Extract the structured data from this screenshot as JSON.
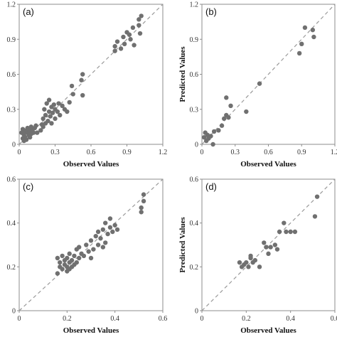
{
  "colors": {
    "points": "#707070",
    "diagonal": "#9a9a9a",
    "frame": "#8c8c8c"
  },
  "chart_data": [
    {
      "type": "scatter",
      "tag": "(a)",
      "xlabel": "Observed Values",
      "ylabel": "",
      "xlim": [
        0,
        1.2
      ],
      "ylim": [
        0,
        1.2
      ],
      "xticks": [
        "0",
        "0.3",
        "0.6",
        "0.9",
        "1.2"
      ],
      "yticks": [
        "0",
        "0.3",
        "0.6",
        "0.9",
        "1.2"
      ],
      "reference_line": "y = x",
      "x": [
        0.02,
        0.03,
        0.03,
        0.04,
        0.04,
        0.05,
        0.05,
        0.06,
        0.06,
        0.07,
        0.07,
        0.08,
        0.08,
        0.09,
        0.09,
        0.1,
        0.1,
        0.11,
        0.12,
        0.13,
        0.14,
        0.15,
        0.18,
        0.19,
        0.2,
        0.2,
        0.21,
        0.22,
        0.22,
        0.23,
        0.24,
        0.25,
        0.25,
        0.26,
        0.27,
        0.27,
        0.28,
        0.29,
        0.3,
        0.3,
        0.32,
        0.33,
        0.34,
        0.36,
        0.38,
        0.4,
        0.42,
        0.44,
        0.45,
        0.52,
        0.53,
        0.53,
        0.8,
        0.8,
        0.82,
        0.85,
        0.87,
        0.88,
        0.9,
        0.92,
        0.93,
        0.95,
        0.96,
        1.0,
        1.0,
        1.01,
        1.02
      ],
      "y": [
        0.1,
        0.05,
        0.13,
        0.08,
        0.03,
        0.11,
        0.06,
        0.12,
        0.04,
        0.1,
        0.14,
        0.08,
        0.13,
        0.06,
        0.11,
        0.09,
        0.15,
        0.12,
        0.1,
        0.14,
        0.16,
        0.1,
        0.12,
        0.17,
        0.15,
        0.22,
        0.3,
        0.18,
        0.25,
        0.35,
        0.2,
        0.28,
        0.38,
        0.24,
        0.32,
        0.18,
        0.27,
        0.34,
        0.3,
        0.22,
        0.28,
        0.35,
        0.25,
        0.33,
        0.3,
        0.28,
        0.36,
        0.5,
        0.43,
        0.55,
        0.6,
        0.42,
        0.8,
        0.84,
        0.88,
        0.82,
        0.92,
        0.86,
        0.96,
        0.94,
        0.9,
        1.0,
        0.85,
        1.07,
        1.02,
        0.95,
        1.1
      ]
    },
    {
      "type": "scatter",
      "tag": "(b)",
      "xlabel": "Observed Values",
      "ylabel": "Predicted Values",
      "xlim": [
        0,
        1.2
      ],
      "ylim": [
        0,
        1.2
      ],
      "xticks": [
        "0",
        "0.3",
        "0.6",
        "0.9",
        "1.2"
      ],
      "yticks": [
        "0",
        "0.3",
        "0.6",
        "0.9",
        "1.2"
      ],
      "reference_line": "y = x",
      "x": [
        0.02,
        0.03,
        0.04,
        0.05,
        0.06,
        0.08,
        0.1,
        0.11,
        0.15,
        0.18,
        0.2,
        0.22,
        0.22,
        0.24,
        0.26,
        0.4,
        0.52,
        0.88,
        0.9,
        0.93,
        1.0,
        1.01
      ],
      "y": [
        0.06,
        0.1,
        0.03,
        0.08,
        0.05,
        0.07,
        0.0,
        0.11,
        0.12,
        0.16,
        0.22,
        0.4,
        0.25,
        0.23,
        0.33,
        0.28,
        0.52,
        0.78,
        0.86,
        1.0,
        0.98,
        0.92
      ]
    },
    {
      "type": "scatter",
      "tag": "(c)",
      "xlabel": "Observed Values",
      "ylabel": "",
      "xlim": [
        0,
        0.6
      ],
      "ylim": [
        0,
        0.6
      ],
      "xticks": [
        "0",
        "0.2",
        "0.4",
        "0.6"
      ],
      "yticks": [
        "0",
        "0.2",
        "0.4",
        "0.6"
      ],
      "reference_line": "y = x",
      "x": [
        0.16,
        0.16,
        0.17,
        0.17,
        0.18,
        0.18,
        0.19,
        0.19,
        0.2,
        0.2,
        0.2,
        0.21,
        0.21,
        0.21,
        0.22,
        0.22,
        0.23,
        0.23,
        0.24,
        0.24,
        0.25,
        0.25,
        0.26,
        0.27,
        0.28,
        0.29,
        0.3,
        0.3,
        0.31,
        0.32,
        0.33,
        0.33,
        0.34,
        0.35,
        0.35,
        0.36,
        0.36,
        0.37,
        0.38,
        0.38,
        0.39,
        0.4,
        0.41,
        0.51,
        0.51,
        0.52,
        0.52
      ],
      "y": [
        0.17,
        0.24,
        0.2,
        0.22,
        0.19,
        0.25,
        0.21,
        0.23,
        0.18,
        0.2,
        0.24,
        0.19,
        0.22,
        0.26,
        0.2,
        0.23,
        0.21,
        0.25,
        0.22,
        0.28,
        0.24,
        0.29,
        0.26,
        0.25,
        0.3,
        0.27,
        0.24,
        0.32,
        0.28,
        0.34,
        0.3,
        0.36,
        0.33,
        0.29,
        0.37,
        0.31,
        0.4,
        0.35,
        0.38,
        0.42,
        0.36,
        0.39,
        0.37,
        0.45,
        0.47,
        0.5,
        0.53
      ]
    },
    {
      "type": "scatter",
      "tag": "(d)",
      "xlabel": "Observed Values",
      "ylabel": "Predicted Values",
      "xlim": [
        0,
        0.6
      ],
      "ylim": [
        0,
        0.6
      ],
      "xticks": [
        "0",
        "0.2",
        "0.4",
        "0.6"
      ],
      "yticks": [
        "0",
        "0.2",
        "0.4",
        "0.6"
      ],
      "reference_line": "y = x",
      "x": [
        0.17,
        0.18,
        0.19,
        0.2,
        0.21,
        0.22,
        0.22,
        0.23,
        0.24,
        0.26,
        0.28,
        0.29,
        0.3,
        0.31,
        0.33,
        0.34,
        0.35,
        0.37,
        0.38,
        0.4,
        0.42,
        0.51,
        0.52
      ],
      "y": [
        0.22,
        0.2,
        0.21,
        0.22,
        0.2,
        0.24,
        0.25,
        0.22,
        0.23,
        0.2,
        0.31,
        0.29,
        0.26,
        0.29,
        0.3,
        0.28,
        0.36,
        0.4,
        0.36,
        0.36,
        0.36,
        0.43,
        0.52
      ]
    }
  ]
}
